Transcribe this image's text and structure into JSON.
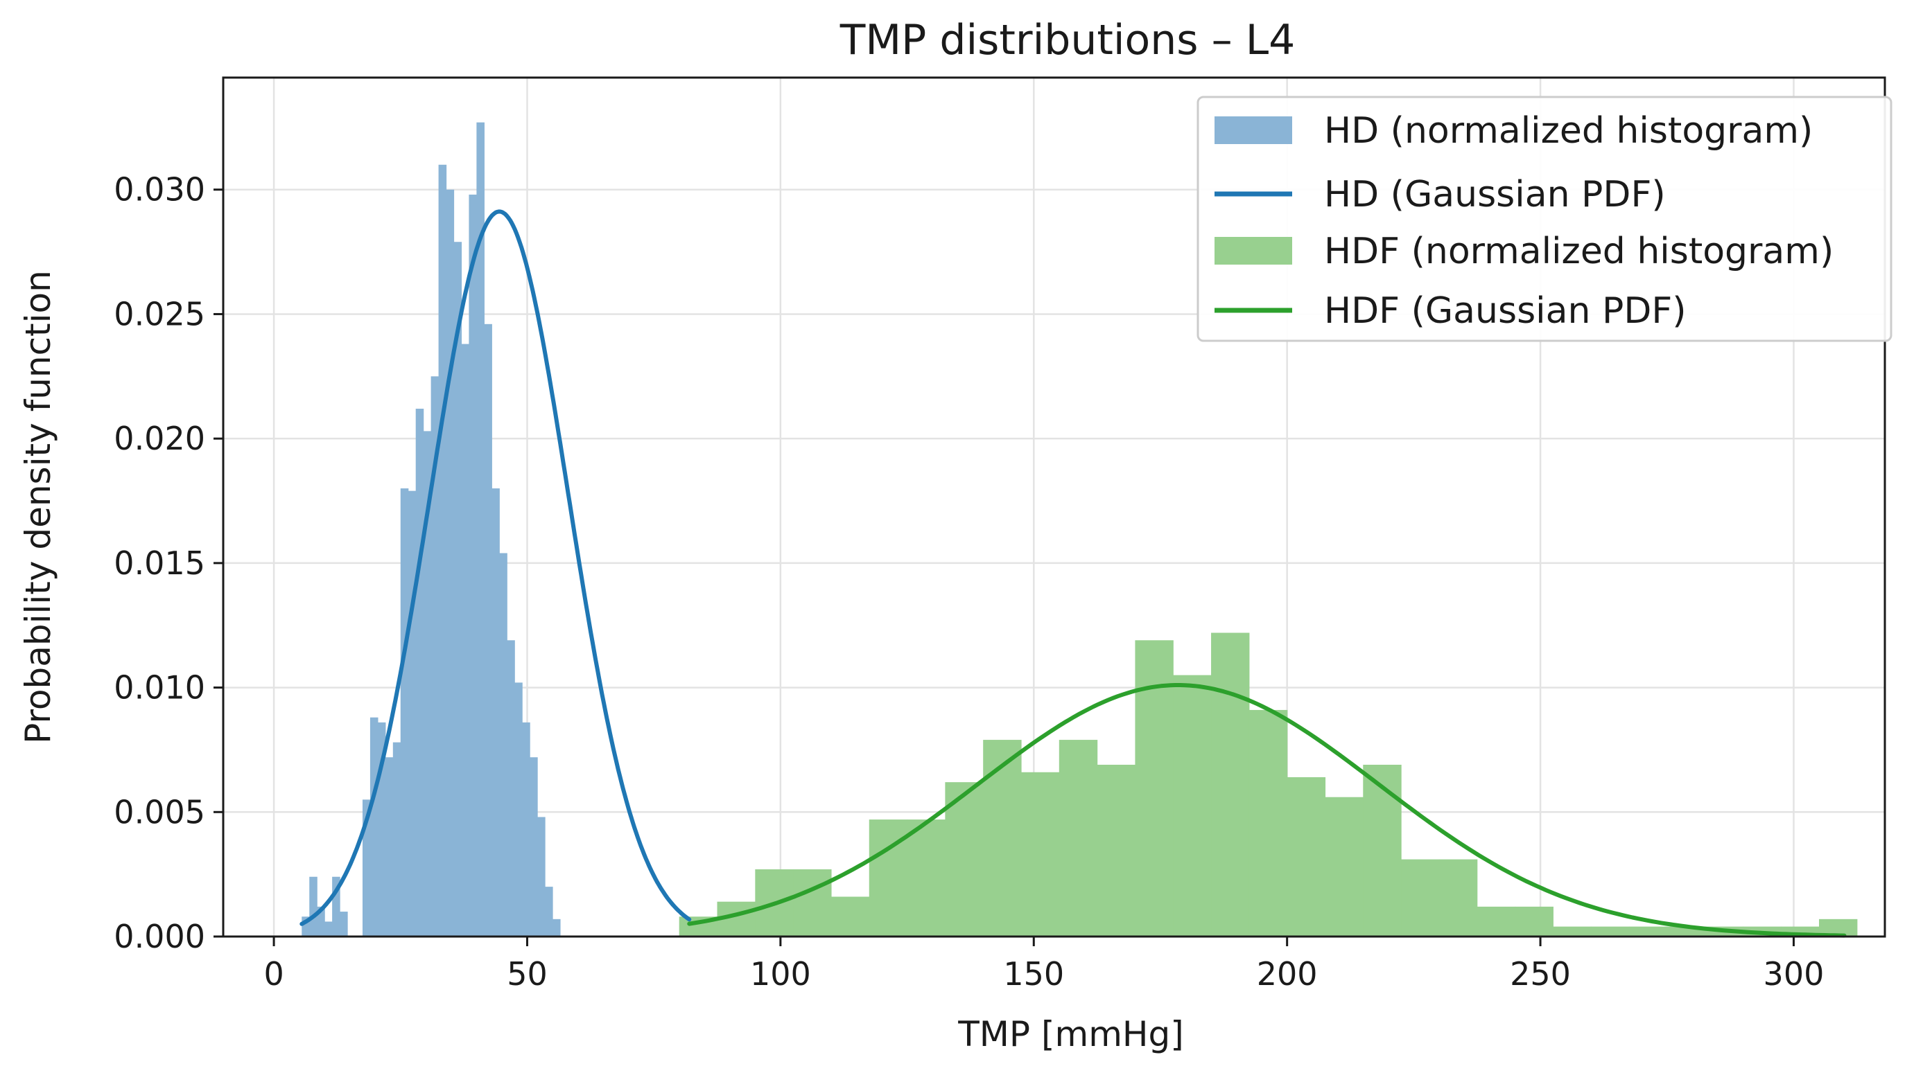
{
  "chart_data": {
    "type": "histogram",
    "title": "TMP distributions – L4",
    "xlabel": "TMP [mmHg]",
    "ylabel": "Probability density function",
    "xlim": [
      -10,
      318
    ],
    "ylim": [
      0,
      0.0345
    ],
    "xticks": [
      0,
      50,
      100,
      150,
      200,
      250,
      300
    ],
    "xtick_labels": [
      "0",
      "50",
      "100",
      "150",
      "200",
      "250",
      "300"
    ],
    "yticks": [
      0,
      0.005,
      0.01,
      0.015,
      0.02,
      0.025,
      0.03
    ],
    "ytick_labels": [
      "0.000",
      "0.005",
      "0.010",
      "0.015",
      "0.020",
      "0.025",
      "0.030"
    ],
    "grid": true,
    "legend_position": "top-right",
    "series": [
      {
        "name": "HD (normalized histogram)",
        "kind": "histogram",
        "color": "#8ab4d6",
        "bin_start": 5.5,
        "bin_width": 1.5,
        "values": [
          0.0008,
          0.0024,
          0.0012,
          0.0006,
          0.0024,
          0.001,
          0.0,
          0.0,
          0.0055,
          0.0088,
          0.0086,
          0.0072,
          0.0078,
          0.018,
          0.0179,
          0.0212,
          0.0203,
          0.0225,
          0.031,
          0.03,
          0.0279,
          0.0238,
          0.0298,
          0.0327,
          0.0246,
          0.018,
          0.0154,
          0.0119,
          0.0102,
          0.0086,
          0.0072,
          0.0048,
          0.002,
          0.0007
        ]
      },
      {
        "name": "HD (Gaussian PDF)",
        "kind": "gaussian",
        "color": "#1f77b4",
        "mean": 44.5,
        "std": 13.7,
        "x_range": [
          5.5,
          82
        ]
      },
      {
        "name": "HDF (normalized histogram)",
        "kind": "histogram",
        "color": "#98d08f",
        "bin_start": 80,
        "bin_width": 7.5,
        "values": [
          0.0008,
          0.0014,
          0.0027,
          0.0027,
          0.0016,
          0.0047,
          0.0047,
          0.0062,
          0.0079,
          0.0066,
          0.0079,
          0.0069,
          0.0119,
          0.0105,
          0.0122,
          0.0091,
          0.0064,
          0.0056,
          0.0069,
          0.0031,
          0.0031,
          0.0012,
          0.0012,
          0.0004,
          0.0004,
          0.0004,
          0.0004,
          0.0004,
          0.0004,
          0.0004,
          0.0007
        ]
      },
      {
        "name": "HDF (Gaussian PDF)",
        "kind": "gaussian",
        "color": "#2ca02c",
        "mean": 178.5,
        "std": 39.5,
        "x_range": [
          82,
          310
        ]
      }
    ]
  }
}
